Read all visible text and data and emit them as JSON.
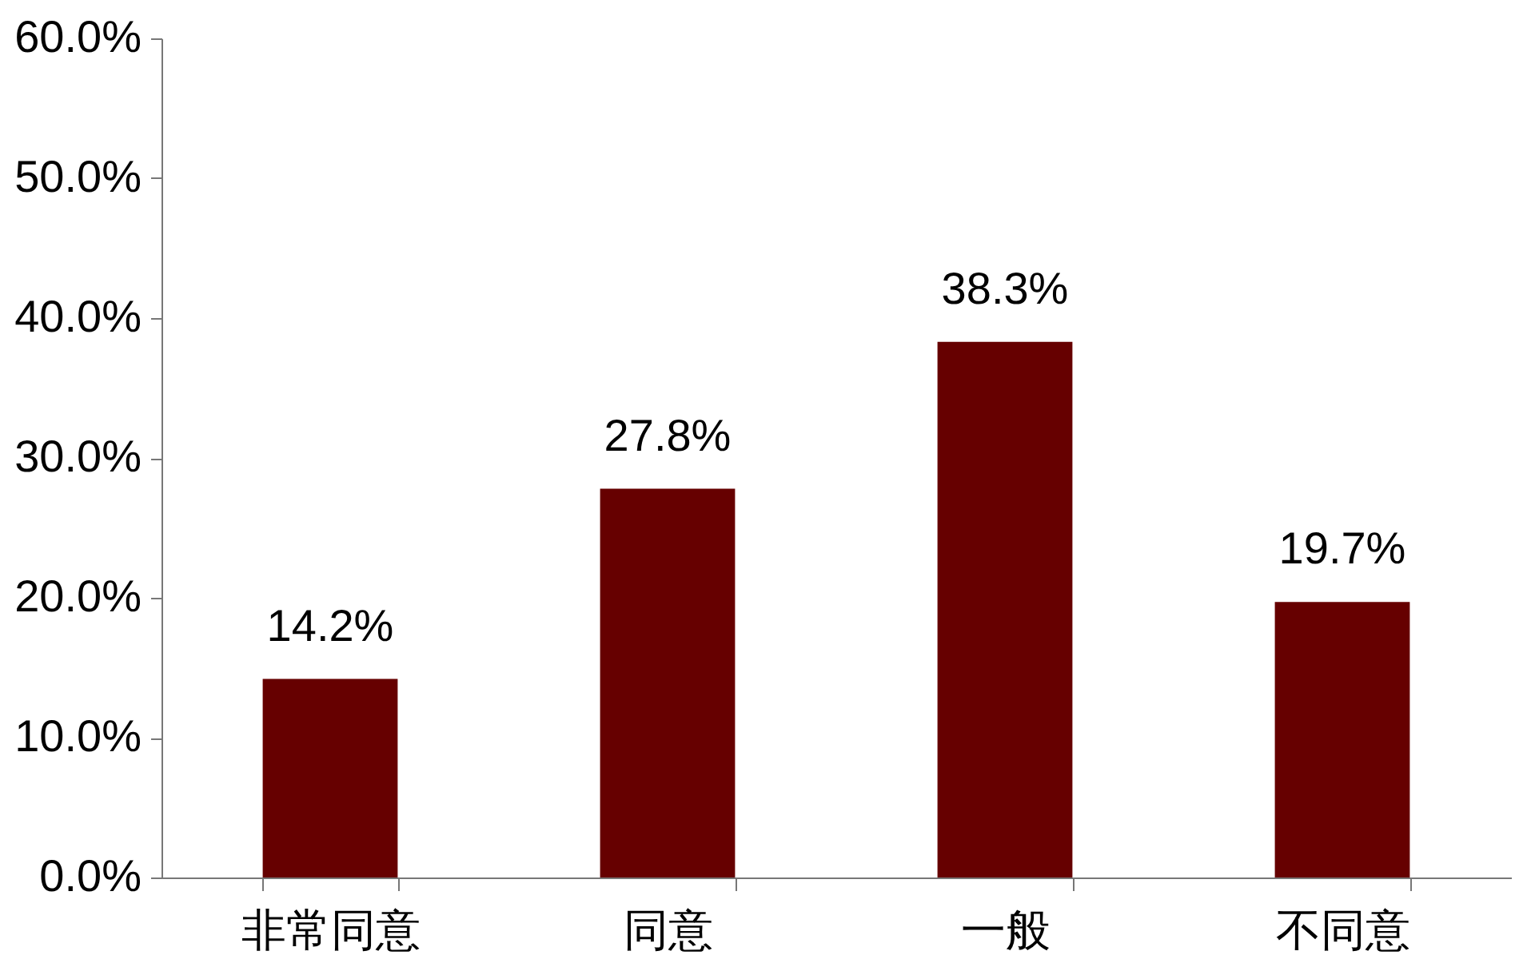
{
  "chart_data": {
    "type": "bar",
    "categories": [
      "非常同意",
      "同意",
      "一般",
      "不同意"
    ],
    "values": [
      14.2,
      27.8,
      38.3,
      19.7
    ],
    "value_labels": [
      "14.2%",
      "27.8%",
      "38.3%",
      "19.7%"
    ],
    "color": "#660000",
    "ylim": [
      0,
      60
    ],
    "yticks": [
      {
        "value": 0,
        "label": "0.0%"
      },
      {
        "value": 10,
        "label": "10.0%"
      },
      {
        "value": 20,
        "label": "20.0%"
      },
      {
        "value": 30,
        "label": "30.0%"
      },
      {
        "value": 40,
        "label": "40.0%"
      },
      {
        "value": 50,
        "label": "50.0%"
      },
      {
        "value": 60,
        "label": "60.0%"
      }
    ],
    "grid": false
  }
}
